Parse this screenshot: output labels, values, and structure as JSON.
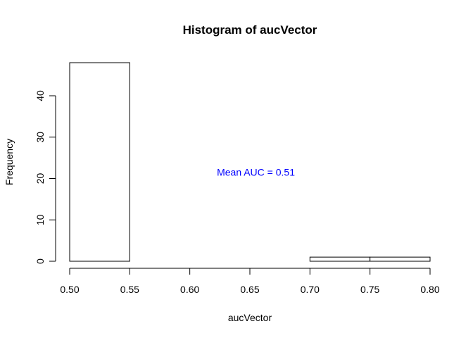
{
  "chart_data": {
    "type": "bar",
    "title": "Histogram of aucVector",
    "xlabel": "aucVector",
    "ylabel": "Frequency",
    "bins": [
      {
        "x0": 0.5,
        "x1": 0.55,
        "count": 48
      },
      {
        "x0": 0.55,
        "x1": 0.6,
        "count": 0
      },
      {
        "x0": 0.6,
        "x1": 0.65,
        "count": 0
      },
      {
        "x0": 0.65,
        "x1": 0.7,
        "count": 0
      },
      {
        "x0": 0.7,
        "x1": 0.75,
        "count": 1
      },
      {
        "x0": 0.75,
        "x1": 0.8,
        "count": 1
      }
    ],
    "xlim": [
      0.5,
      0.8
    ],
    "ylim": [
      0,
      48
    ],
    "x_ticks": [
      "0.50",
      "0.55",
      "0.60",
      "0.65",
      "0.70",
      "0.75",
      "0.80"
    ],
    "y_ticks": [
      "0",
      "10",
      "20",
      "30",
      "40"
    ],
    "grid": false,
    "annotation": {
      "text": "Mean AUC =  0.51",
      "x": 0.655,
      "y": 21.5,
      "color": "#0000ff"
    },
    "bar_fill": "#ffffff",
    "bar_stroke": "#000000"
  }
}
